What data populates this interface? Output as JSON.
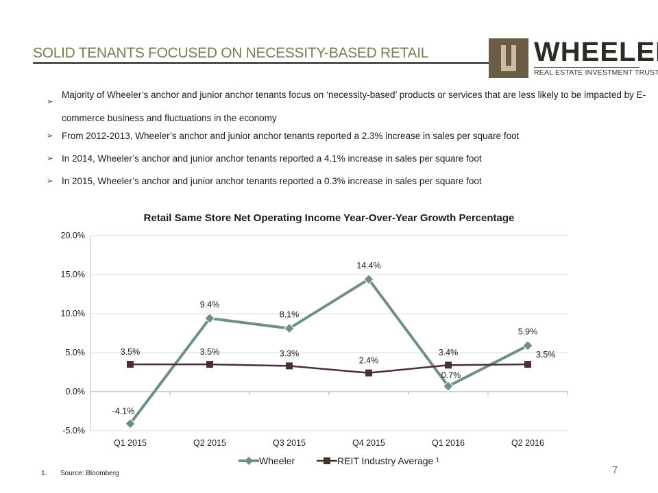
{
  "header": {
    "title": "SOLID TENANTS FOCUSED ON NECESSITY-BASED RETAIL",
    "logo_brand": "WHEELER",
    "logo_subtitle": "REAL ESTATE INVESTMENT TRUST",
    "logo_colors": {
      "dark": "#6b5d45",
      "light": "#c9bd9d",
      "title": "#7e7a54"
    }
  },
  "bullets": [
    "Majority of Wheeler’s anchor and junior anchor tenants focus on ‘necessity-based’ products or services that are less likely to be impacted by E-commerce business and fluctuations in the economy",
    "From 2012-2013, Wheeler’s anchor and junior anchor tenants reported a 2.3% increase in sales per square foot",
    "In 2014, Wheeler’s anchor and junior anchor tenants reported a 4.1% increase in sales per square foot",
    "In 2015, Wheeler’s anchor and junior anchor tenants reported a 0.3% increase in sales per square foot"
  ],
  "chart_data": {
    "type": "line",
    "title": "Retail Same Store Net Operating Income Year-Over-Year Growth Percentage",
    "categories": [
      "Q1 2015",
      "Q2 2015",
      "Q3 2015",
      "Q4 2015",
      "Q1 2016",
      "Q2 2016"
    ],
    "ylim": [
      -5,
      20
    ],
    "yticks": [
      -5,
      0,
      5,
      10,
      15,
      20
    ],
    "ytick_labels": [
      "-5.0%",
      "0.0%",
      "5.0%",
      "10.0%",
      "15.0%",
      "20.0%"
    ],
    "grid": true,
    "legend_position": "bottom",
    "series": [
      {
        "name": "Wheeler",
        "values": [
          -4.1,
          9.4,
          8.1,
          14.4,
          0.7,
          5.9
        ],
        "labels": [
          "-4.1%",
          "9.4%",
          "8.1%",
          "14.4%",
          "0.7%",
          "5.9%"
        ],
        "color": "#6f9080",
        "marker": "diamond"
      },
      {
        "name": "REIT Industry Average ¹",
        "values": [
          3.5,
          3.5,
          3.3,
          2.4,
          3.4,
          3.5
        ],
        "labels": [
          "3.5%",
          "3.5%",
          "3.3%",
          "2.4%",
          "3.4%",
          "3.5%"
        ],
        "color": "#4a2f2f",
        "marker": "square"
      }
    ]
  },
  "footnote": {
    "number": "1.",
    "text": "Source: Bloomberg"
  },
  "page_number": "7"
}
